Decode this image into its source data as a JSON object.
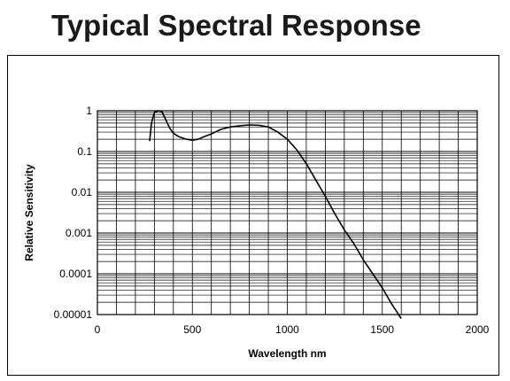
{
  "header": {
    "title": "Typical Spectral Response"
  },
  "chart_data": {
    "type": "line",
    "title": "Typical Spectral Response",
    "xlabel": "Wavelength nm",
    "ylabel": "Relative Sensitivity",
    "xlim": [
      0,
      2000
    ],
    "ylim": [
      1e-05,
      1
    ],
    "yscale": "log",
    "grid": true,
    "x_ticks": [
      0,
      500,
      1000,
      1500,
      2000
    ],
    "x_tick_labels": [
      "0",
      "500",
      "1000",
      "1500",
      "2000"
    ],
    "y_ticks": [
      1,
      0.1,
      0.01,
      0.001,
      0.0001,
      1e-05
    ],
    "y_tick_labels": [
      "1",
      "0.1",
      "0.01",
      "0.001",
      "0.0001",
      "0.00001"
    ],
    "series": [
      {
        "x": [
          275,
          285,
          300,
          320,
          340,
          360,
          380,
          400,
          430,
          470,
          500,
          530,
          560,
          600,
          650,
          700,
          750,
          800,
          850,
          900,
          950,
          1000,
          1050,
          1100,
          1150,
          1200,
          1250,
          1300,
          1350,
          1400,
          1450,
          1500,
          1550,
          1600
        ],
        "y": [
          0.18,
          0.5,
          0.9,
          1.0,
          0.95,
          0.6,
          0.38,
          0.28,
          0.23,
          0.2,
          0.19,
          0.2,
          0.23,
          0.27,
          0.35,
          0.4,
          0.43,
          0.45,
          0.44,
          0.4,
          0.3,
          0.2,
          0.11,
          0.05,
          0.02,
          0.008,
          0.003,
          0.0012,
          0.00055,
          0.00022,
          0.0001,
          4.5e-05,
          1.8e-05,
          8e-06
        ]
      }
    ]
  }
}
